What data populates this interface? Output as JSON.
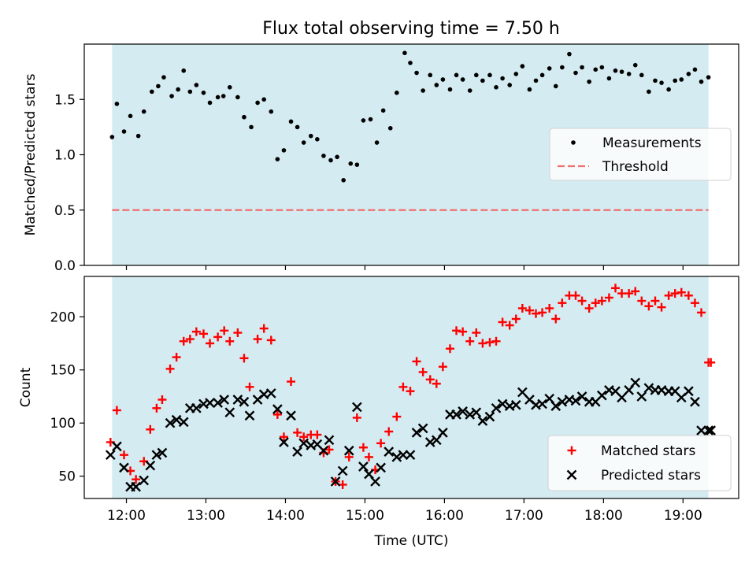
{
  "figure_title": "Flux total observing time = 7.50 h",
  "colors": {
    "background_band": "#d4ebf1",
    "measurement": "#000000",
    "threshold": "#f07070",
    "matched": "#ff0000",
    "predicted": "#000000"
  },
  "chart_data": [
    {
      "type": "scatter",
      "title": "Flux total observing time = 7.50 h",
      "xlabel": "",
      "ylabel": "Matched/Predicted stars",
      "xlim": [
        11.47,
        19.7
      ],
      "ylim": [
        0,
        2.0
      ],
      "yticks": [
        0.0,
        0.5,
        1.0,
        1.5
      ],
      "ytick_labels": [
        "0.0",
        "0.5",
        "1.0",
        "1.5"
      ],
      "shaded_x": [
        11.82,
        19.32
      ],
      "threshold": {
        "value": 0.5,
        "x": [
          11.82,
          19.32
        ]
      },
      "legend": {
        "position": "center-right",
        "entries": [
          "Measurements",
          "Threshold"
        ]
      },
      "series": [
        {
          "name": "Measurements",
          "x": [
            11.82,
            11.88,
            11.97,
            12.05,
            12.15,
            12.22,
            12.32,
            12.4,
            12.47,
            12.57,
            12.65,
            12.72,
            12.8,
            12.88,
            12.97,
            13.05,
            13.15,
            13.22,
            13.3,
            13.4,
            13.48,
            13.57,
            13.65,
            13.73,
            13.82,
            13.9,
            13.98,
            14.07,
            14.15,
            14.23,
            14.32,
            14.4,
            14.48,
            14.57,
            14.65,
            14.73,
            14.82,
            14.9,
            14.98,
            15.07,
            15.15,
            15.23,
            15.32,
            15.4,
            15.5,
            15.57,
            15.65,
            15.73,
            15.82,
            15.9,
            15.98,
            16.07,
            16.15,
            16.23,
            16.32,
            16.4,
            16.48,
            16.57,
            16.65,
            16.73,
            16.82,
            16.9,
            16.98,
            17.07,
            17.15,
            17.23,
            17.32,
            17.4,
            17.48,
            17.57,
            17.65,
            17.73,
            17.82,
            17.9,
            17.98,
            18.07,
            18.15,
            18.23,
            18.32,
            18.4,
            18.48,
            18.57,
            18.65,
            18.73,
            18.82,
            18.9,
            18.98,
            19.07,
            19.15,
            19.23,
            19.32
          ],
          "y": [
            1.16,
            1.46,
            1.21,
            1.35,
            1.17,
            1.39,
            1.57,
            1.62,
            1.7,
            1.53,
            1.59,
            1.76,
            1.57,
            1.63,
            1.56,
            1.47,
            1.52,
            1.53,
            1.61,
            1.52,
            1.34,
            1.25,
            1.47,
            1.5,
            1.39,
            0.96,
            1.04,
            1.3,
            1.25,
            1.11,
            1.17,
            1.14,
            0.99,
            0.95,
            0.98,
            0.77,
            0.92,
            0.91,
            1.31,
            1.32,
            1.11,
            1.4,
            1.24,
            1.56,
            1.92,
            1.83,
            1.74,
            1.58,
            1.72,
            1.63,
            1.68,
            1.59,
            1.72,
            1.68,
            1.58,
            1.72,
            1.67,
            1.72,
            1.61,
            1.69,
            1.63,
            1.73,
            1.8,
            1.59,
            1.67,
            1.72,
            1.78,
            1.62,
            1.79,
            1.91,
            1.74,
            1.79,
            1.66,
            1.77,
            1.79,
            1.69,
            1.76,
            1.75,
            1.73,
            1.81,
            1.72,
            1.57,
            1.67,
            1.65,
            1.59,
            1.67,
            1.68,
            1.73,
            1.77,
            1.66,
            1.7
          ]
        }
      ]
    },
    {
      "type": "scatter",
      "title": "",
      "xlabel": "Time (UTC)",
      "ylabel": "Count",
      "xlim": [
        11.47,
        19.7
      ],
      "ylim": [
        29,
        238
      ],
      "xticks": [
        12,
        13,
        14,
        15,
        16,
        17,
        18,
        19
      ],
      "xtick_labels": [
        "12:00",
        "13:00",
        "14:00",
        "15:00",
        "16:00",
        "17:00",
        "18:00",
        "19:00"
      ],
      "yticks": [
        50,
        100,
        150,
        200
      ],
      "ytick_labels": [
        "50",
        "100",
        "150",
        "200"
      ],
      "shaded_x": [
        11.82,
        19.32
      ],
      "legend": {
        "position": "bottom-right",
        "entries": [
          "Matched stars",
          "Predicted stars"
        ]
      },
      "series": [
        {
          "name": "Matched stars",
          "marker": "plus",
          "x": [
            11.8,
            11.88,
            11.97,
            12.05,
            12.12,
            12.22,
            12.3,
            12.38,
            12.45,
            12.55,
            12.63,
            12.72,
            12.8,
            12.88,
            12.97,
            13.05,
            13.15,
            13.23,
            13.3,
            13.4,
            13.48,
            13.55,
            13.65,
            13.73,
            13.82,
            13.9,
            13.98,
            14.07,
            14.15,
            14.23,
            14.32,
            14.4,
            14.48,
            14.55,
            14.63,
            14.72,
            14.8,
            14.9,
            14.98,
            15.05,
            15.13,
            15.2,
            15.3,
            15.4,
            15.48,
            15.57,
            15.65,
            15.73,
            15.82,
            15.9,
            15.98,
            16.07,
            16.15,
            16.23,
            16.32,
            16.4,
            16.48,
            16.57,
            16.65,
            16.73,
            16.82,
            16.9,
            16.98,
            17.07,
            17.15,
            17.23,
            17.32,
            17.4,
            17.48,
            17.57,
            17.65,
            17.73,
            17.82,
            17.9,
            17.98,
            18.07,
            18.15,
            18.23,
            18.32,
            18.4,
            18.48,
            18.57,
            18.65,
            18.73,
            18.82,
            18.9,
            18.98,
            19.07,
            19.15,
            19.23,
            19.32,
            19.35
          ],
          "y": [
            82,
            112,
            70,
            55,
            47,
            64,
            94,
            114,
            122,
            151,
            162,
            177,
            179,
            186,
            184,
            175,
            181,
            187,
            177,
            185,
            161,
            134,
            179,
            189,
            178,
            108,
            87,
            139,
            91,
            87,
            89,
            89,
            72,
            75,
            45,
            42,
            68,
            105,
            77,
            68,
            56,
            81,
            92,
            106,
            134,
            130,
            158,
            148,
            141,
            137,
            153,
            170,
            187,
            186,
            177,
            185,
            175,
            176,
            177,
            195,
            192,
            198,
            208,
            206,
            203,
            204,
            208,
            198,
            213,
            220,
            220,
            215,
            208,
            213,
            215,
            218,
            227,
            222,
            222,
            224,
            215,
            210,
            215,
            209,
            220,
            222,
            223,
            220,
            213,
            204,
            157,
            157
          ]
        },
        {
          "name": "Predicted stars",
          "marker": "x",
          "x": [
            11.8,
            11.88,
            11.97,
            12.05,
            12.12,
            12.22,
            12.3,
            12.38,
            12.45,
            12.55,
            12.63,
            12.72,
            12.8,
            12.88,
            12.97,
            13.05,
            13.15,
            13.23,
            13.3,
            13.4,
            13.48,
            13.55,
            13.65,
            13.73,
            13.82,
            13.9,
            13.98,
            14.07,
            14.15,
            14.23,
            14.32,
            14.4,
            14.48,
            14.55,
            14.63,
            14.72,
            14.8,
            14.9,
            14.98,
            15.05,
            15.13,
            15.2,
            15.3,
            15.4,
            15.48,
            15.57,
            15.65,
            15.73,
            15.82,
            15.9,
            15.98,
            16.07,
            16.15,
            16.23,
            16.32,
            16.4,
            16.48,
            16.57,
            16.65,
            16.73,
            16.82,
            16.9,
            16.98,
            17.07,
            17.15,
            17.23,
            17.32,
            17.4,
            17.48,
            17.57,
            17.65,
            17.73,
            17.82,
            17.9,
            17.98,
            18.07,
            18.15,
            18.23,
            18.32,
            18.4,
            18.48,
            18.57,
            18.65,
            18.73,
            18.82,
            18.9,
            18.98,
            19.07,
            19.15,
            19.23,
            19.32,
            19.35
          ],
          "y": [
            70,
            78,
            58,
            40,
            40,
            46,
            60,
            70,
            72,
            100,
            103,
            101,
            114,
            114,
            118,
            119,
            119,
            122,
            110,
            122,
            120,
            107,
            122,
            127,
            128,
            113,
            82,
            107,
            73,
            81,
            79,
            80,
            74,
            84,
            45,
            55,
            74,
            115,
            59,
            52,
            45,
            58,
            73,
            68,
            70,
            70,
            91,
            95,
            82,
            84,
            91,
            108,
            108,
            111,
            108,
            110,
            102,
            106,
            114,
            118,
            116,
            117,
            129,
            122,
            117,
            118,
            123,
            116,
            120,
            122,
            121,
            125,
            120,
            120,
            126,
            131,
            130,
            124,
            131,
            138,
            125,
            133,
            131,
            131,
            130,
            130,
            124,
            130,
            120,
            93,
            93,
            93
          ]
        }
      ]
    }
  ]
}
